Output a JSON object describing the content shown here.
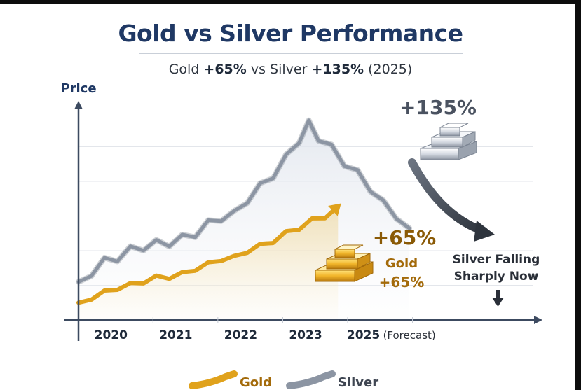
{
  "title": "Gold vs Silver Performance",
  "subtitle": {
    "prefix": "Gold ",
    "gold_pct": "+65%",
    "middle": " vs Silver ",
    "silver_pct": "+135%",
    "suffix": " (2025)"
  },
  "colors": {
    "gold": "#e0a21c",
    "silver": "#8c95a3",
    "title": "#1f3864",
    "axis": "#3c4a60"
  },
  "chart_data": {
    "type": "line",
    "ylabel": "Price",
    "xlabel": "",
    "x_ticks": [
      "2020",
      "2021",
      "2022",
      "2023",
      "2025"
    ],
    "x_tick_note": "(Forecast)",
    "x_range": [
      2019.6,
      2026.6
    ],
    "y_range": [
      0,
      6
    ],
    "y_hidden": true,
    "grid": "horizontal",
    "series": [
      {
        "name": "Gold",
        "x": [
          2019.6,
          2019.8,
          2020.0,
          2020.2,
          2020.4,
          2020.6,
          2020.8,
          2021.0,
          2021.2,
          2021.4,
          2021.6,
          2021.8,
          2022.0,
          2022.2,
          2022.4,
          2022.6,
          2022.8,
          2023.0,
          2023.2,
          2023.4,
          2023.6
        ],
        "y": [
          0.5,
          0.65,
          0.8,
          0.95,
          1.0,
          1.1,
          1.2,
          1.25,
          1.35,
          1.5,
          1.6,
          1.75,
          1.85,
          2.0,
          2.15,
          2.3,
          2.5,
          2.65,
          2.85,
          3.0,
          3.25
        ]
      },
      {
        "name": "Silver",
        "x": [
          2019.6,
          2019.8,
          2020.0,
          2020.2,
          2020.4,
          2020.6,
          2020.8,
          2021.0,
          2021.2,
          2021.4,
          2021.6,
          2021.8,
          2022.0,
          2022.2,
          2022.4,
          2022.6,
          2022.8,
          2023.0,
          2023.15,
          2023.3,
          2023.5,
          2023.7,
          2023.9,
          2024.1,
          2024.3,
          2024.5,
          2024.7
        ],
        "y": [
          1.1,
          1.4,
          1.7,
          1.85,
          2.0,
          2.1,
          2.15,
          2.25,
          2.4,
          2.55,
          2.75,
          2.95,
          3.15,
          3.5,
          3.85,
          4.25,
          4.65,
          5.2,
          5.6,
          5.3,
          5.0,
          4.6,
          4.2,
          3.8,
          3.45,
          3.05,
          2.55
        ]
      }
    ],
    "annotations": {
      "silver_gain": "+135%",
      "gold_gain": "+65%",
      "gold_label_line1": "Gold",
      "gold_label_line2": "+65%",
      "silver_note_line1": "Silver Falling",
      "silver_note_line2": "Sharply Now"
    },
    "legend": {
      "placement": "bottom-center",
      "gold": "Gold",
      "silver": "Silver"
    }
  }
}
